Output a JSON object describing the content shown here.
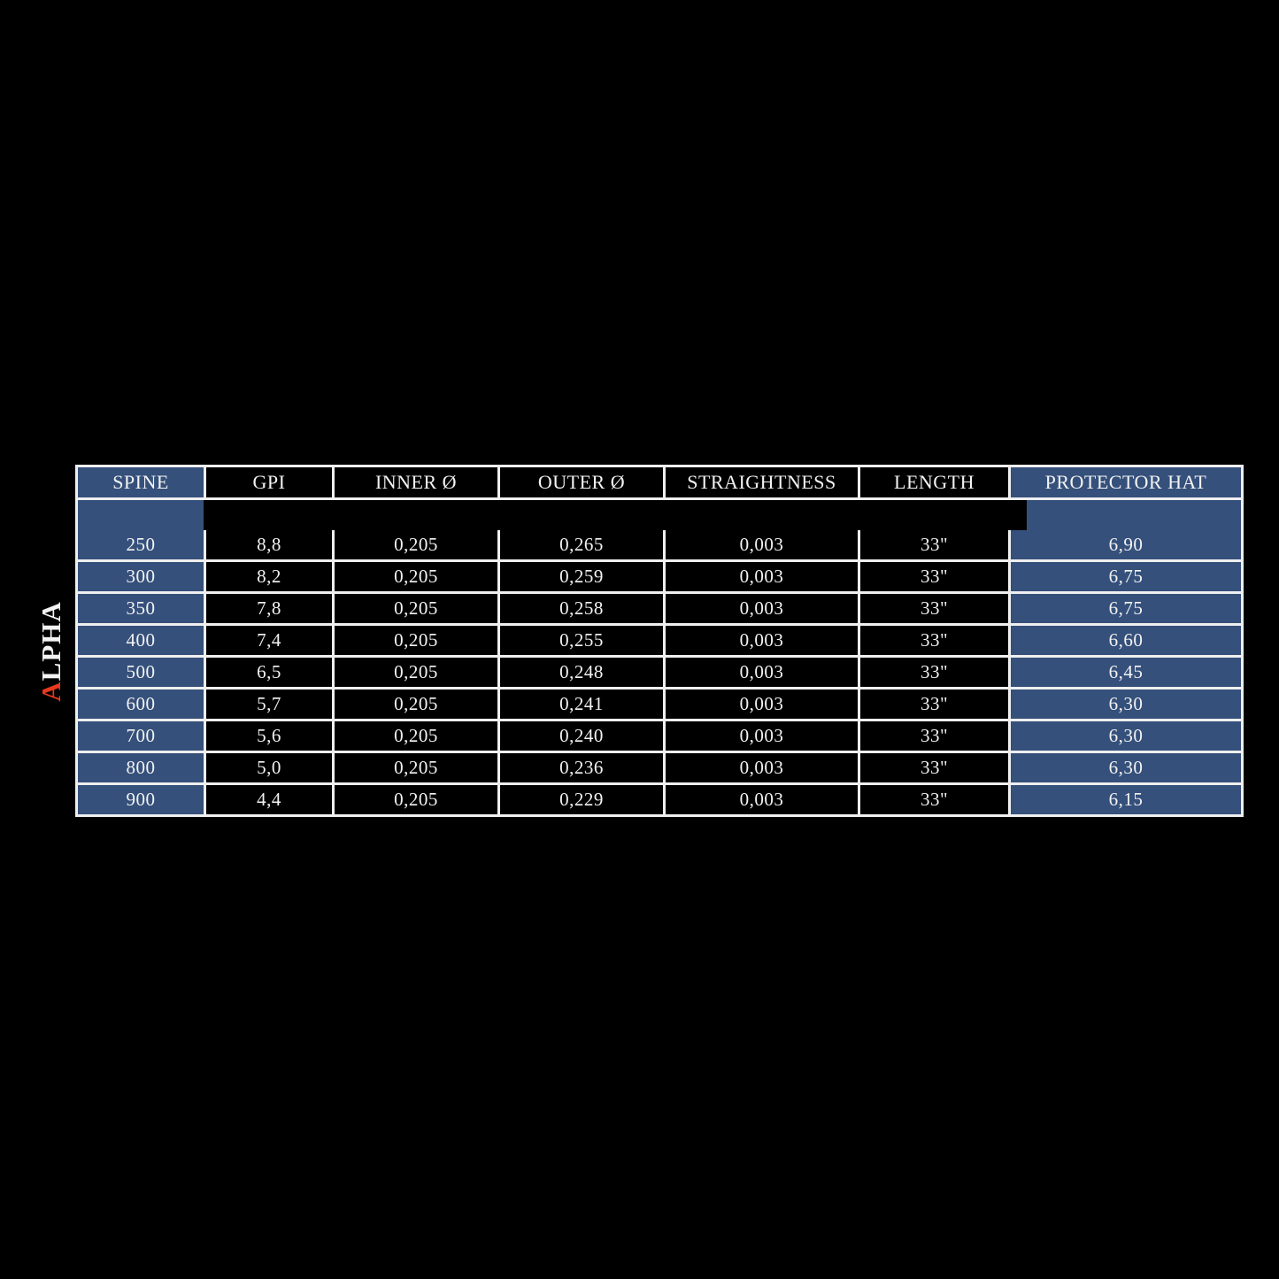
{
  "page": {
    "background": "#000000"
  },
  "brand": {
    "vertical_label_first_letter": "A",
    "vertical_label_rest": "LPHA",
    "accent_color": "#e8391d",
    "text_color": "#f3f3f3"
  },
  "colors": {
    "highlight_blue": "#35507b",
    "row_black": "#000000",
    "border_white": "#efefef",
    "text": "#f3f3f3"
  },
  "table": {
    "columns": [
      "SPINE",
      "GPI",
      "INNER Ø",
      "OUTER Ø",
      "STRAIGHTNESS",
      "LENGTH",
      "PROTECTOR HAT"
    ],
    "rows": [
      [
        "250",
        "8,8",
        "0,205",
        "0,265",
        "0,003",
        "33\"",
        "6,90"
      ],
      [
        "300",
        "8,2",
        "0,205",
        "0,259",
        "0,003",
        "33\"",
        "6,75"
      ],
      [
        "350",
        "7,8",
        "0,205",
        "0,258",
        "0,003",
        "33\"",
        "6,75"
      ],
      [
        "400",
        "7,4",
        "0,205",
        "0,255",
        "0,003",
        "33\"",
        "6,60"
      ],
      [
        "500",
        "6,5",
        "0,205",
        "0,248",
        "0,003",
        "33\"",
        "6,45"
      ],
      [
        "600",
        "5,7",
        "0,205",
        "0,241",
        "0,003",
        "33\"",
        "6,30"
      ],
      [
        "700",
        "5,6",
        "0,205",
        "0,240",
        "0,003",
        "33\"",
        "6,30"
      ],
      [
        "800",
        "5,0",
        "0,205",
        "0,236",
        "0,003",
        "33\"",
        "6,30"
      ],
      [
        "900",
        "4,4",
        "0,205",
        "0,229",
        "0,003",
        "33\"",
        "6,15"
      ]
    ]
  },
  "chart_data": {
    "type": "table",
    "title": "ALPHA arrow shaft specification chart",
    "columns": [
      "SPINE",
      "GPI",
      "INNER Ø",
      "OUTER Ø",
      "STRAIGHTNESS",
      "LENGTH",
      "PROTECTOR HAT"
    ],
    "rows": [
      [
        "250",
        "8,8",
        "0,205",
        "0,265",
        "0,003",
        "33\"",
        "6,90"
      ],
      [
        "300",
        "8,2",
        "0,205",
        "0,259",
        "0,003",
        "33\"",
        "6,75"
      ],
      [
        "350",
        "7,8",
        "0,205",
        "0,258",
        "0,003",
        "33\"",
        "6,75"
      ],
      [
        "400",
        "7,4",
        "0,205",
        "0,255",
        "0,003",
        "33\"",
        "6,60"
      ],
      [
        "500",
        "6,5",
        "0,205",
        "0,248",
        "0,003",
        "33\"",
        "6,45"
      ],
      [
        "600",
        "5,7",
        "0,205",
        "0,241",
        "0,003",
        "33\"",
        "6,30"
      ],
      [
        "700",
        "5,6",
        "0,205",
        "0,240",
        "0,003",
        "33\"",
        "6,30"
      ],
      [
        "800",
        "5,0",
        "0,205",
        "0,236",
        "0,003",
        "33\"",
        "6,30"
      ],
      [
        "900",
        "4,4",
        "0,205",
        "0,229",
        "0,003",
        "33\"",
        "6,15"
      ]
    ],
    "highlighted_columns": [
      "SPINE",
      "PROTECTOR HAT"
    ]
  }
}
